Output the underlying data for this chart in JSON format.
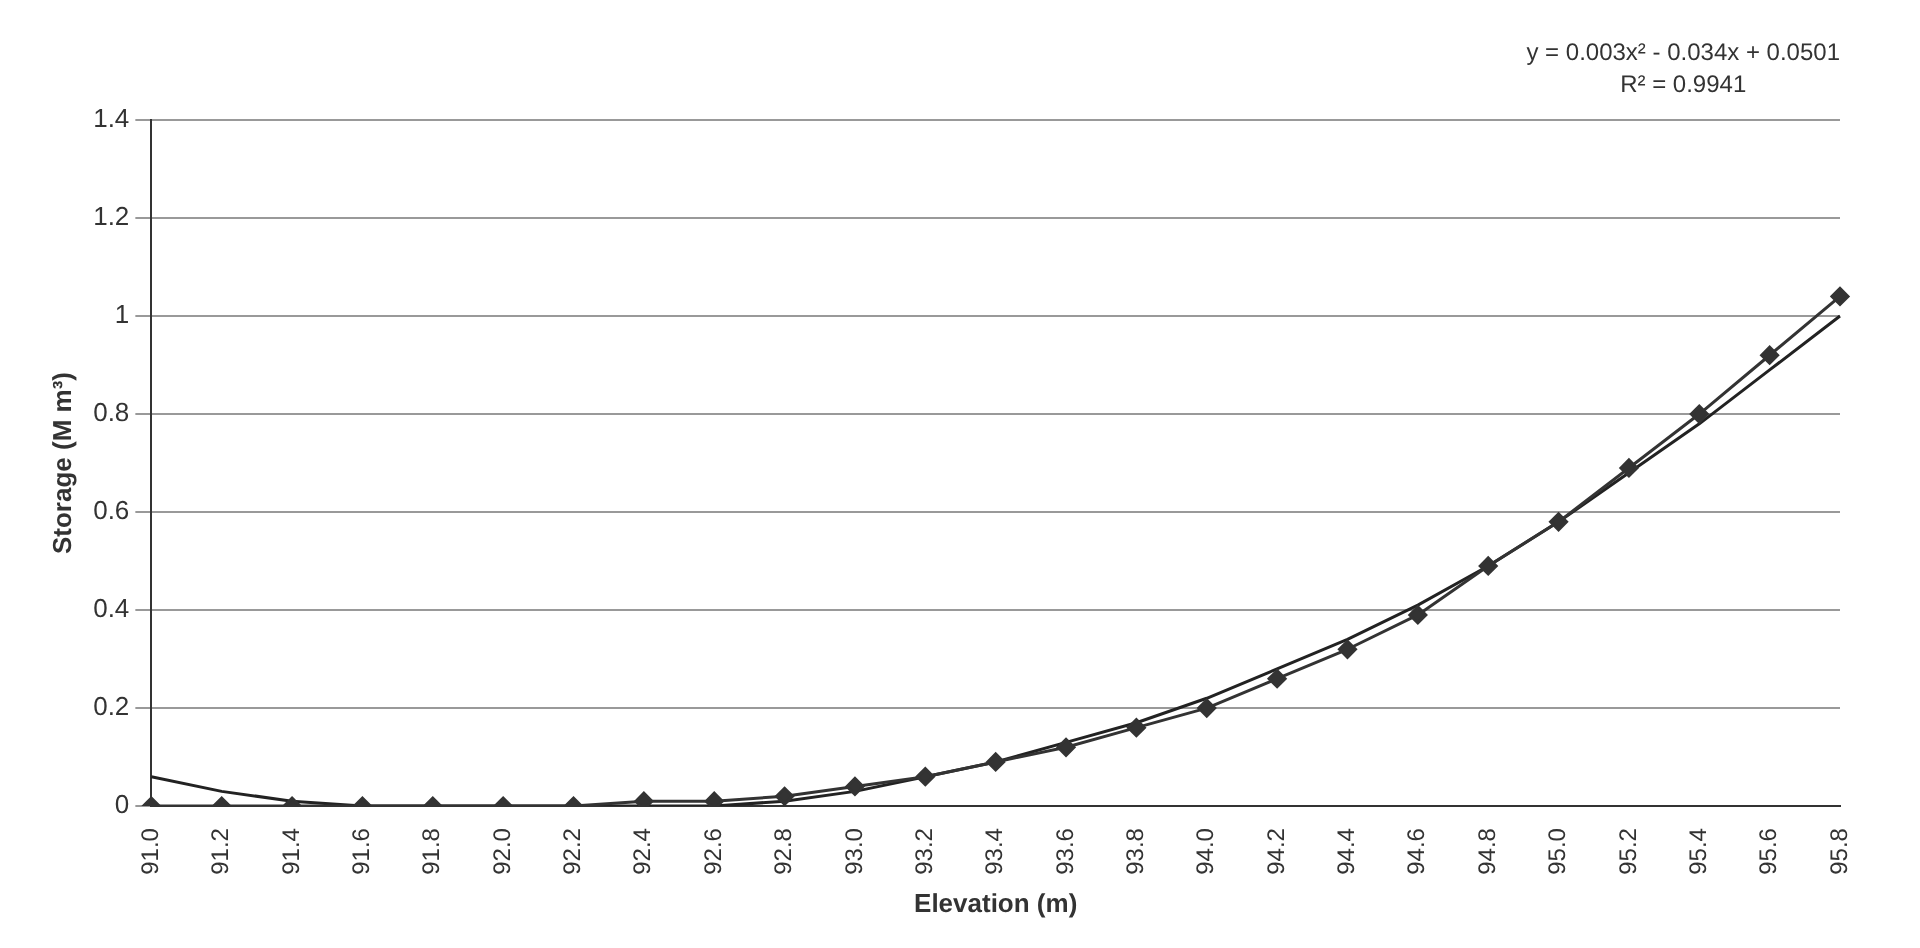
{
  "chart_data": {
    "type": "line",
    "xlabel": "Elevation (m)",
    "ylabel": "Storage (M m³)",
    "categories": [
      "91.0",
      "91.2",
      "91.4",
      "91.6",
      "91.8",
      "92.0",
      "92.2",
      "92.4",
      "92.6",
      "92.8",
      "93.0",
      "93.2",
      "93.4",
      "93.6",
      "93.8",
      "94.0",
      "94.2",
      "94.4",
      "94.6",
      "94.8",
      "95.0",
      "95.2",
      "95.4",
      "95.6",
      "95.8"
    ],
    "series": [
      {
        "color": "#333333",
        "marker": "diamond",
        "values": [
          0,
          0,
          0,
          0,
          0,
          0,
          0,
          0.01,
          0.01,
          0.02,
          0.04,
          0.06,
          0.09,
          0.12,
          0.16,
          0.2,
          0.26,
          0.32,
          0.39,
          0.49,
          0.58,
          0.69,
          0.8,
          0.92,
          1.04
        ]
      },
      {
        "type": "line",
        "color": "#222222",
        "marker": "none",
        "values": [
          0.06,
          0.03,
          0.01,
          0,
          0,
          0,
          0,
          0,
          0,
          0.01,
          0.03,
          0.06,
          0.09,
          0.13,
          0.17,
          0.22,
          0.28,
          0.34,
          0.41,
          0.49,
          0.58,
          0.68,
          0.78,
          0.89,
          1.0
        ]
      }
    ],
    "ylim": [
      0,
      1.4
    ],
    "yticks": [
      0,
      0.2,
      0.4,
      0.6,
      0.8,
      1,
      1.2,
      1.4
    ],
    "grid": "y",
    "annotations": [
      "y = 0.003x² - 0.034x + 0.0501",
      "R² = 0.9941"
    ]
  }
}
